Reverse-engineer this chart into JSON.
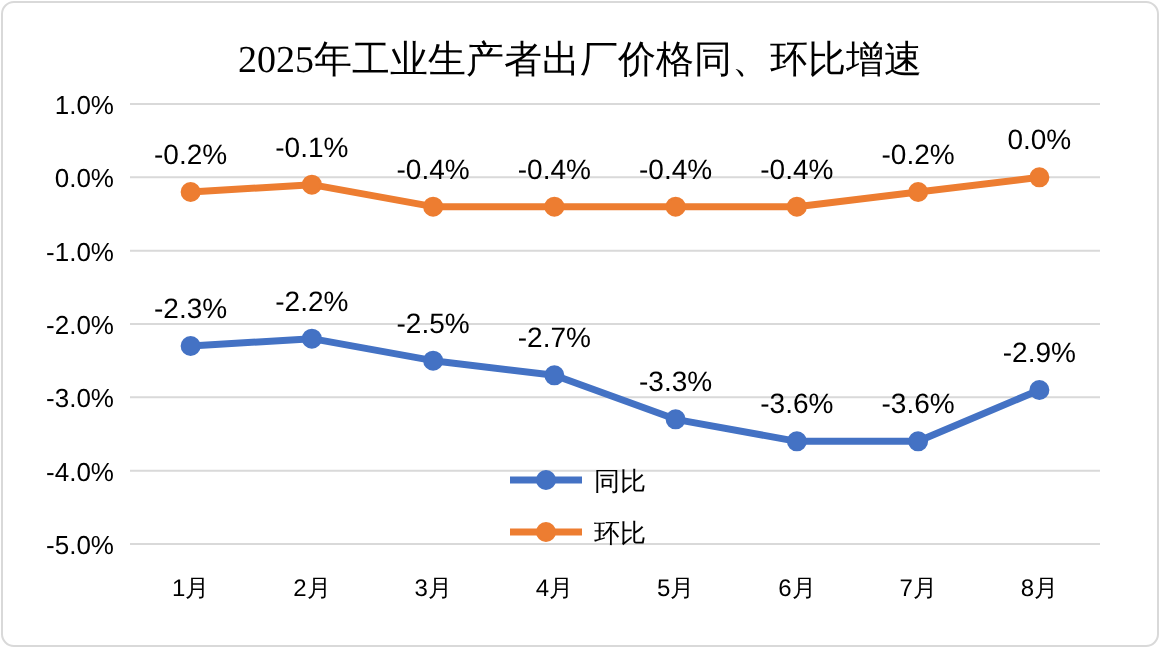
{
  "chart_data": {
    "type": "line",
    "title": "2025年工业生产者出厂价格同、环比增速",
    "categories": [
      "1月",
      "2月",
      "3月",
      "4月",
      "5月",
      "6月",
      "7月",
      "8月"
    ],
    "series": [
      {
        "name": "同比",
        "color": "#4472c4",
        "values": [
          -2.3,
          -2.2,
          -2.5,
          -2.7,
          -3.3,
          -3.6,
          -3.6,
          -2.9
        ],
        "value_labels": [
          "-2.3%",
          "-2.2%",
          "-2.5%",
          "-2.7%",
          "-3.3%",
          "-3.6%",
          "-3.6%",
          "-2.9%"
        ]
      },
      {
        "name": "环比",
        "color": "#ed7d31",
        "values": [
          -0.2,
          -0.1,
          -0.4,
          -0.4,
          -0.4,
          -0.4,
          -0.2,
          0.0
        ],
        "value_labels": [
          "-0.2%",
          "-0.1%",
          "-0.4%",
          "-0.4%",
          "-0.4%",
          "-0.4%",
          "-0.2%",
          "0.0%"
        ]
      }
    ],
    "ylim": [
      -5,
      1
    ],
    "yticks": [
      {
        "value": 1,
        "label": "1.0%"
      },
      {
        "value": 0,
        "label": "0.0%"
      },
      {
        "value": -1,
        "label": "-1.0%"
      },
      {
        "value": -2,
        "label": "-2.0%"
      },
      {
        "value": -3,
        "label": "-3.0%"
      },
      {
        "value": -4,
        "label": "-4.0%"
      },
      {
        "value": -5,
        "label": "-5.0%"
      }
    ],
    "grid": "y",
    "legend": "bottom",
    "marker": "circle",
    "line_style": "solid"
  }
}
